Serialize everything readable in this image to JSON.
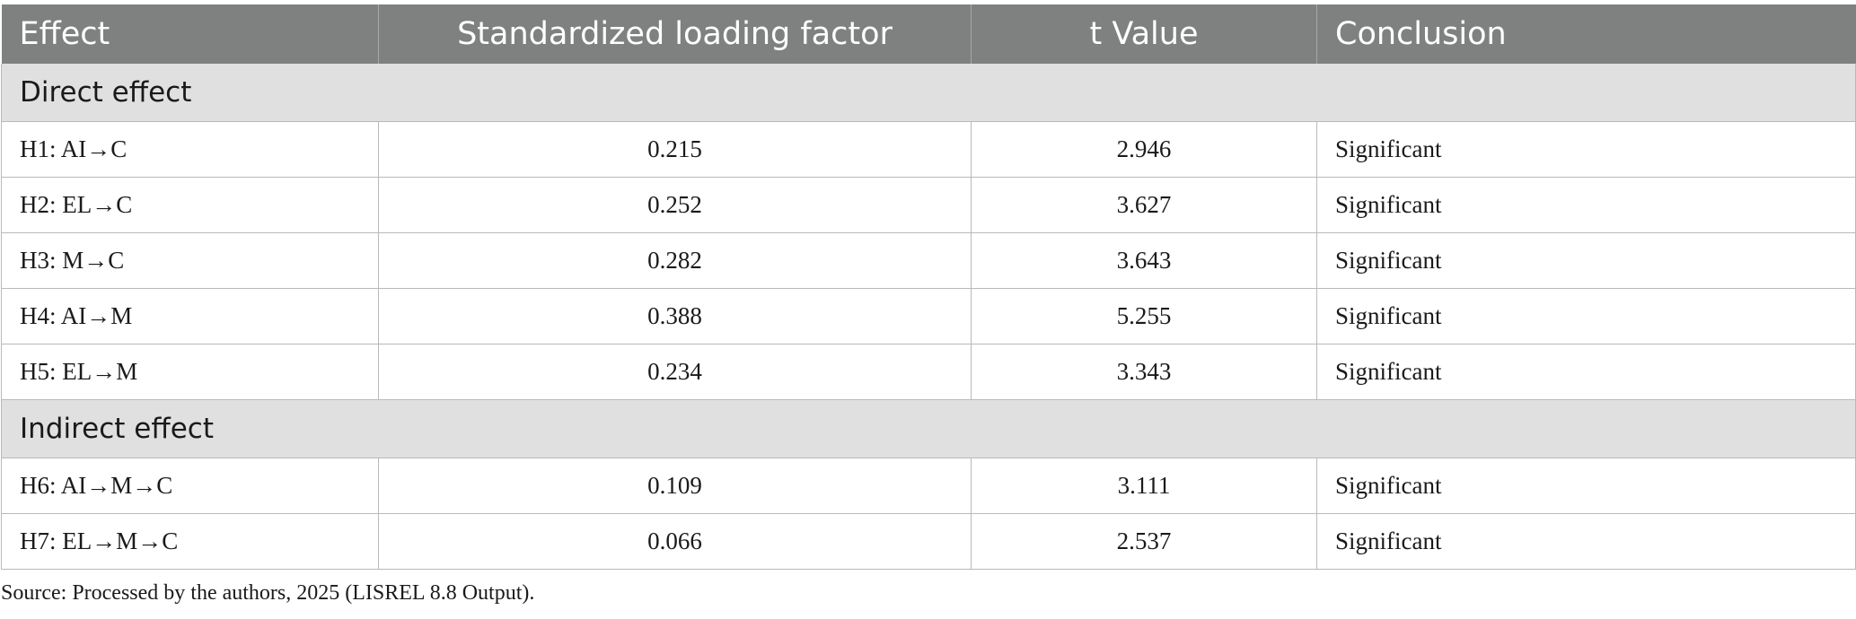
{
  "table": {
    "headers": [
      "Effect",
      "Standardized loading factor",
      "t Value",
      "Conclusion"
    ],
    "sections": [
      {
        "title": "Direct effect",
        "rows": [
          [
            "H1: AI→C",
            "0.215",
            "2.946",
            "Significant"
          ],
          [
            "H2: EL→C",
            "0.252",
            "3.627",
            "Significant"
          ],
          [
            "H3: M→C",
            "0.282",
            "3.643",
            "Significant"
          ],
          [
            "H4: AI→M",
            "0.388",
            "5.255",
            "Significant"
          ],
          [
            "H5: EL→M",
            "0.234",
            "3.343",
            "Significant"
          ]
        ]
      },
      {
        "title": "Indirect effect",
        "rows": [
          [
            "H6: AI→M→C",
            "0.109",
            "3.111",
            "Significant"
          ],
          [
            "H7: EL→M→C",
            "0.066",
            "2.537",
            "Significant"
          ]
        ]
      }
    ]
  },
  "source_note": "Source: Processed by the authors, 2025 (LISREL 8.8 Output)."
}
